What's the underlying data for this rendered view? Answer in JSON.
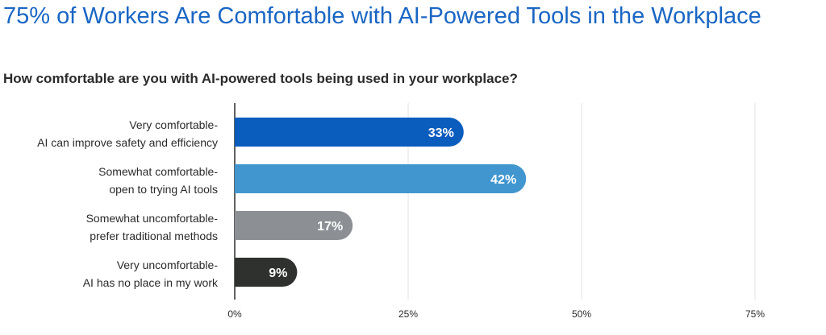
{
  "chart_data": {
    "type": "bar",
    "orientation": "horizontal",
    "title": "75% of Workers Are Comfortable with AI-Powered Tools in the Workplace",
    "subtitle": "How comfortable are you with AI-powered tools being used in your workplace?",
    "categories": [
      {
        "line1": "Very comfortable-",
        "line2": "AI can improve safety and efficiency"
      },
      {
        "line1": "Somewhat comfortable-",
        "line2": "open to trying AI tools"
      },
      {
        "line1": "Somewhat uncomfortable-",
        "line2": "prefer traditional methods"
      },
      {
        "line1": "Very uncomfortable-",
        "line2": "AI has no place in my work"
      }
    ],
    "values": [
      33,
      42,
      17,
      9
    ],
    "value_labels": [
      "33%",
      "42%",
      "17%",
      "9%"
    ],
    "colors": [
      "#0a5cbd",
      "#4196d0",
      "#8c9095",
      "#2f312f"
    ],
    "xlim": [
      0,
      75
    ],
    "xticks": [
      0,
      25,
      50,
      75
    ],
    "xtick_labels": [
      "0%",
      "25%",
      "50%",
      "75%"
    ],
    "grid": true
  }
}
